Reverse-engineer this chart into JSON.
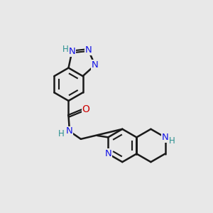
{
  "background_color": "#e8e8e8",
  "bond_color": "#1a1a1a",
  "nitrogen_color": "#1414e6",
  "oxygen_color": "#cc0000",
  "h_color": "#2a9090",
  "figsize": [
    3.0,
    3.0
  ],
  "dpi": 100,
  "xlim": [
    0,
    10
  ],
  "ylim": [
    0,
    10
  ]
}
